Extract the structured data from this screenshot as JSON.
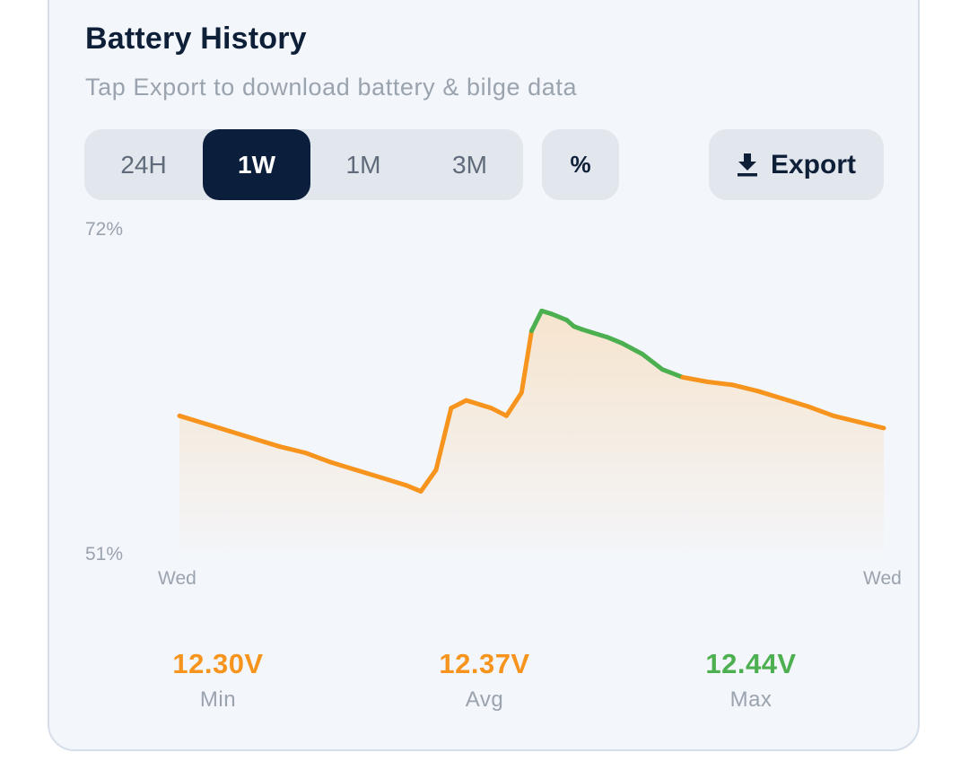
{
  "header": {
    "title": "Battery History",
    "subtitle": "Tap Export to download battery & bilge data"
  },
  "range_tabs": [
    {
      "label": "24H",
      "active": false
    },
    {
      "label": "1W",
      "active": true
    },
    {
      "label": "1M",
      "active": false
    },
    {
      "label": "3M",
      "active": false
    }
  ],
  "unit_toggle": {
    "label": "%"
  },
  "export": {
    "label": "Export",
    "icon": "download-icon"
  },
  "chart_data": {
    "type": "area",
    "y_unit": "%",
    "ylim": [
      51,
      72
    ],
    "y_tick_labels": [
      "72%",
      "51%"
    ],
    "x_tick_labels": [
      "Wed",
      "Wed"
    ],
    "x_range": [
      0,
      7
    ],
    "colors": {
      "line_normal": "#f7941d",
      "line_high": "#4caf50",
      "fill": "#f6e3cb"
    },
    "high_threshold_pct": 62.3,
    "series": [
      {
        "x": [
          0.0,
          0.25,
          0.5,
          0.75,
          1.0,
          1.25,
          1.5,
          1.75,
          2.0,
          2.25,
          2.4,
          2.55,
          2.7,
          2.85,
          2.9,
          3.0,
          3.1,
          3.25,
          3.4,
          3.5,
          3.6,
          3.7,
          3.85,
          3.92,
          4.0,
          4.1,
          4.25,
          4.4,
          4.6,
          4.8,
          5.0,
          5.25,
          5.5,
          5.75,
          6.0,
          6.25,
          6.5,
          6.75,
          7.0
        ],
        "y": [
          60.0,
          59.5,
          59.0,
          58.5,
          58.0,
          57.6,
          57.0,
          56.5,
          56.0,
          55.5,
          55.1,
          56.5,
          60.5,
          61.0,
          60.9,
          60.7,
          60.5,
          60.0,
          61.5,
          65.5,
          66.8,
          66.6,
          66.2,
          65.8,
          65.6,
          65.4,
          65.1,
          64.7,
          64.0,
          63.0,
          62.5,
          62.2,
          62.0,
          61.6,
          61.1,
          60.6,
          60.0,
          59.6,
          59.2
        ]
      }
    ]
  },
  "stats": [
    {
      "value": "12.30V",
      "label": "Min",
      "color": "#f7941d"
    },
    {
      "value": "12.37V",
      "label": "Avg",
      "color": "#f7941d"
    },
    {
      "value": "12.44V",
      "label": "Max",
      "color": "#4caf50"
    }
  ]
}
